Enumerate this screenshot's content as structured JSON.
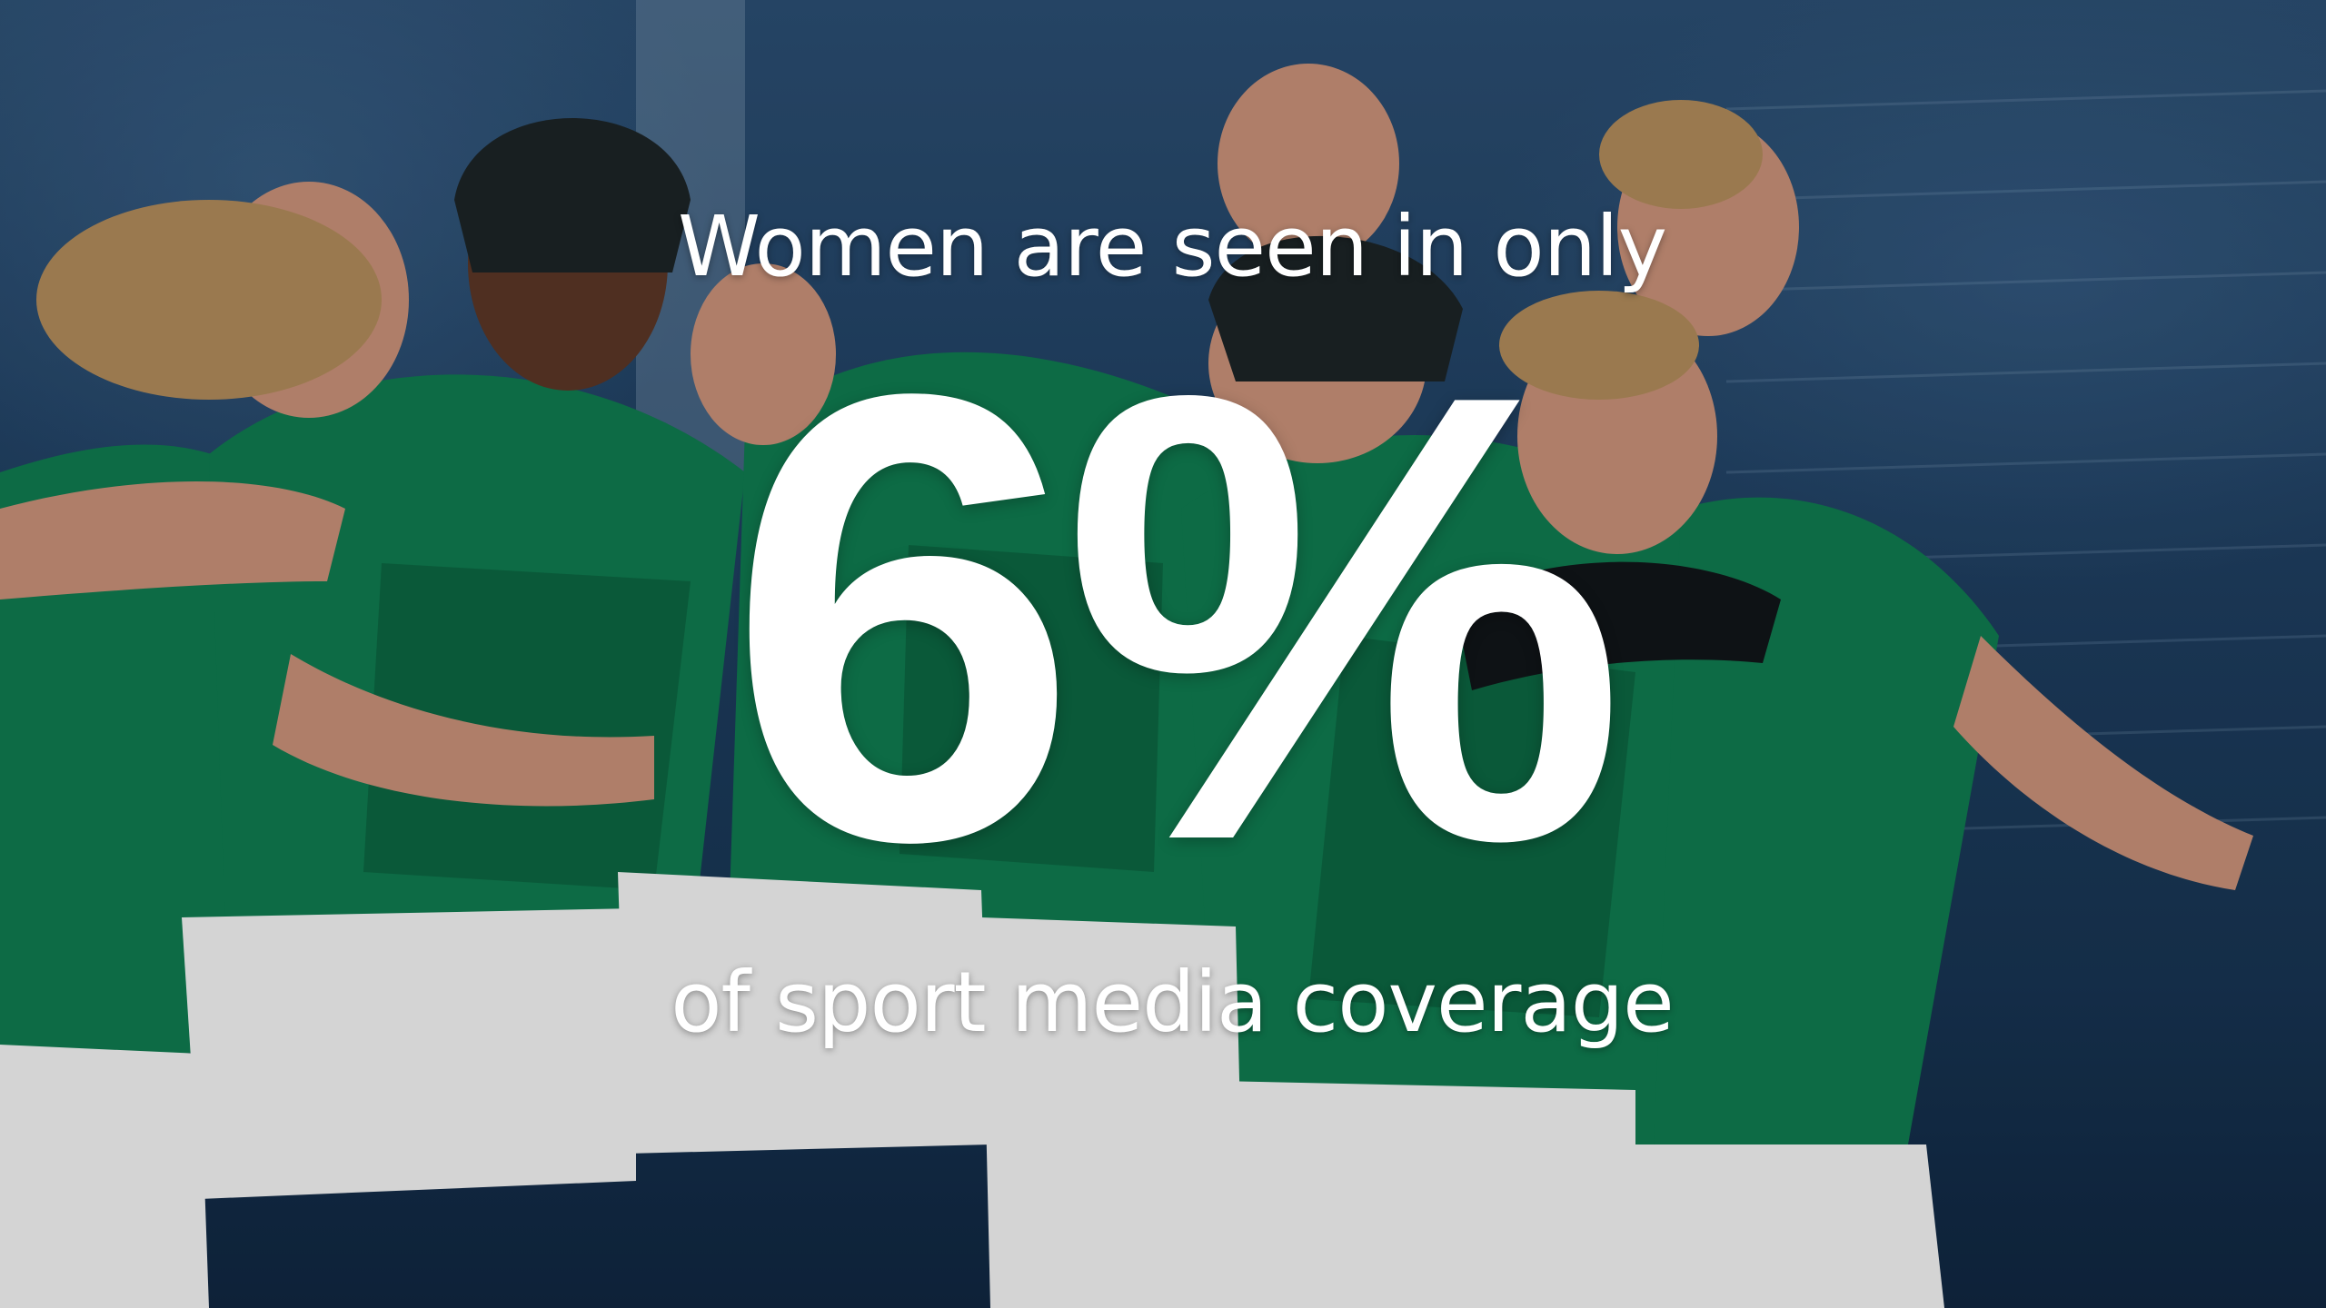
{
  "slide": {
    "headline": "Women are seen in only",
    "statistic": "6%",
    "subline": "of sport media coverage",
    "text_color": "#ffffff",
    "jersey_color": "#0f7a4f",
    "shorts_color": "#f2f2f2",
    "background_color": "#1f3f61"
  }
}
